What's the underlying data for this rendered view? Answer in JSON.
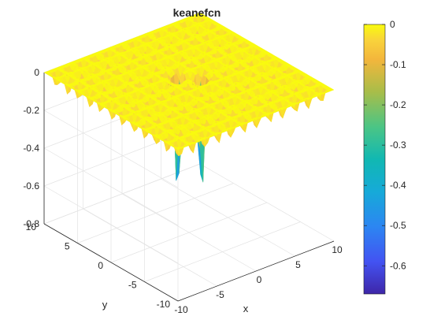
{
  "chart_data": {
    "type": "surface",
    "title": "keanefcn",
    "xlabel": "x",
    "ylabel": "y",
    "zlabel": "",
    "x_range": [
      -10,
      10
    ],
    "y_range": [
      -10,
      10
    ],
    "z_range": [
      -0.8,
      0
    ],
    "x_ticks": [
      -10,
      -5,
      0,
      5,
      10
    ],
    "y_ticks": [
      -10,
      -5,
      0,
      5,
      10
    ],
    "z_ticks": [
      0,
      -0.2,
      -0.4,
      -0.6,
      -0.8
    ],
    "z_tick_labels": [
      "0",
      "-0.2",
      "-0.4",
      "-0.6",
      "-0.8"
    ],
    "surface": {
      "plateau_z": 0,
      "ripple_depth": -0.15,
      "wells": [
        {
          "x": 1.4,
          "y": -0.2,
          "z": -0.67
        },
        {
          "x": -0.2,
          "y": 1.4,
          "z": -0.67
        }
      ]
    },
    "colorbar": {
      "min": -0.67,
      "max": 0,
      "ticks": [
        0,
        -0.1,
        -0.2,
        -0.3,
        -0.4,
        -0.5,
        -0.6
      ],
      "tick_labels": [
        "0",
        "-0.1",
        "-0.2",
        "-0.3",
        "-0.4",
        "-0.5",
        "-0.6"
      ],
      "colormap": "parula"
    },
    "grid": true
  }
}
